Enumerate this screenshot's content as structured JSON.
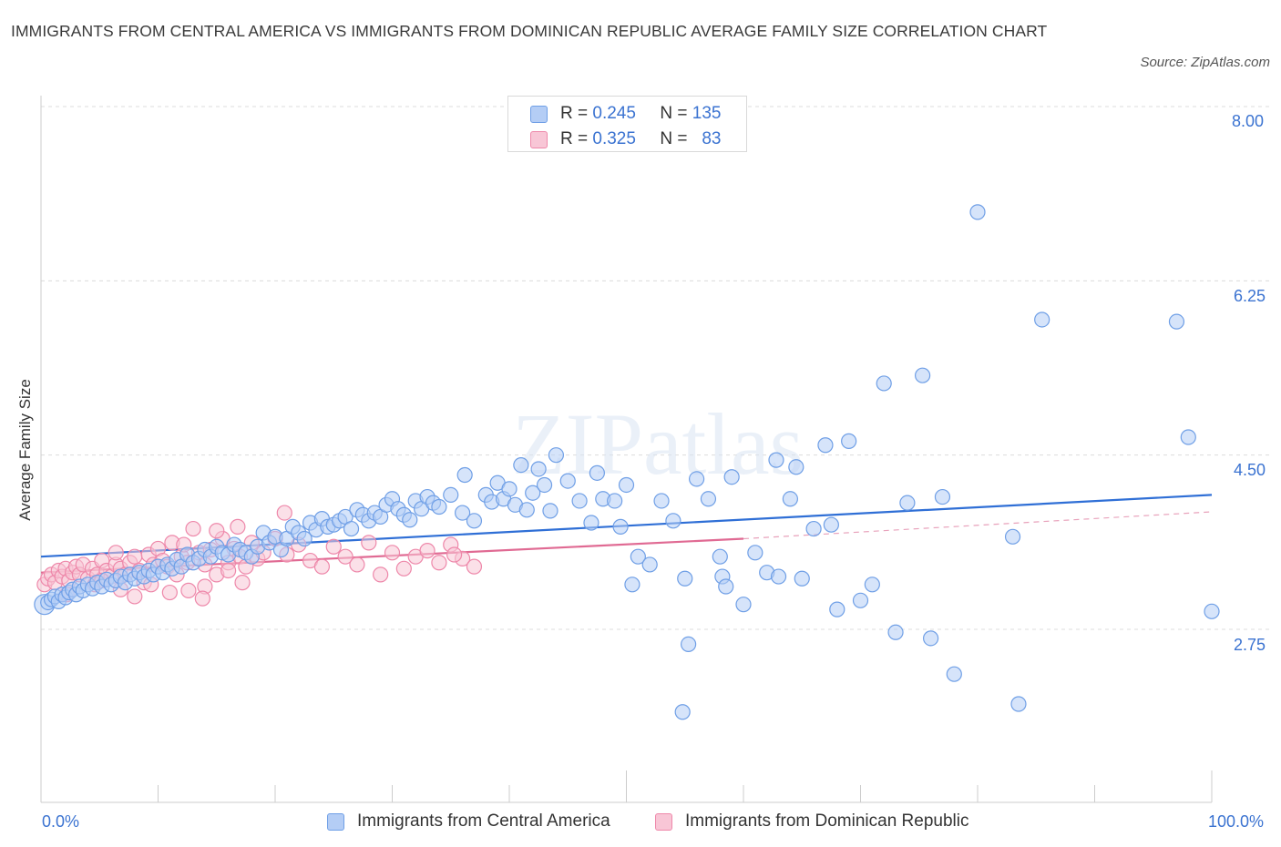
{
  "title": "IMMIGRANTS FROM CENTRAL AMERICA VS IMMIGRANTS FROM DOMINICAN REPUBLIC AVERAGE FAMILY SIZE CORRELATION CHART",
  "source": "Source: ZipAtlas.com",
  "watermark": "ZIPatlas",
  "legend_top": [
    {
      "r_label": "R =",
      "r": "0.245",
      "n_label": "N =",
      "n": "135"
    },
    {
      "r_label": "R =",
      "r": "0.325",
      "n_label": "N =",
      "n": "83"
    }
  ],
  "chart_data": {
    "type": "scatter",
    "title": "IMMIGRANTS FROM CENTRAL AMERICA VS IMMIGRANTS FROM DOMINICAN REPUBLIC AVERAGE FAMILY SIZE CORRELATION CHART",
    "xlabel": "",
    "ylabel": "Average Family Size",
    "xlim": [
      0,
      100
    ],
    "ylim": [
      1.35,
      8.4
    ],
    "x_tick_labels": [
      "0.0%",
      "100.0%"
    ],
    "y_ticks": [
      2.75,
      4.5,
      6.25,
      8.0
    ],
    "y_tick_labels": [
      "2.75",
      "4.50",
      "6.25",
      "8.00"
    ],
    "grid": "horizontal dashed",
    "legend_position": "top-center and bottom",
    "series": [
      {
        "name": "Immigrants from Central America",
        "color": "#6f9fe6",
        "fill": "#b4cdf5",
        "R": 0.245,
        "N": 135,
        "trendline": {
          "x": [
            0,
            100
          ],
          "y": [
            3.48,
            4.1
          ]
        },
        "points": [
          [
            0.3,
            3.0
          ],
          [
            0.6,
            3.02
          ],
          [
            0.9,
            3.05
          ],
          [
            1.2,
            3.08
          ],
          [
            1.5,
            3.03
          ],
          [
            1.8,
            3.1
          ],
          [
            2.1,
            3.07
          ],
          [
            2.4,
            3.12
          ],
          [
            2.7,
            3.15
          ],
          [
            3.0,
            3.1
          ],
          [
            3.3,
            3.18
          ],
          [
            3.6,
            3.14
          ],
          [
            4.0,
            3.2
          ],
          [
            4.4,
            3.16
          ],
          [
            4.8,
            3.22
          ],
          [
            5.2,
            3.18
          ],
          [
            5.6,
            3.25
          ],
          [
            6.0,
            3.2
          ],
          [
            6.4,
            3.24
          ],
          [
            6.8,
            3.28
          ],
          [
            7.2,
            3.22
          ],
          [
            7.6,
            3.3
          ],
          [
            8.0,
            3.26
          ],
          [
            8.4,
            3.32
          ],
          [
            8.8,
            3.28
          ],
          [
            9.2,
            3.34
          ],
          [
            9.6,
            3.3
          ],
          [
            10,
            3.38
          ],
          [
            10.4,
            3.32
          ],
          [
            10.8,
            3.4
          ],
          [
            11.2,
            3.36
          ],
          [
            11.6,
            3.45
          ],
          [
            12,
            3.38
          ],
          [
            12.5,
            3.5
          ],
          [
            13,
            3.42
          ],
          [
            13.5,
            3.46
          ],
          [
            14,
            3.55
          ],
          [
            14.5,
            3.48
          ],
          [
            15,
            3.58
          ],
          [
            15.5,
            3.52
          ],
          [
            16,
            3.5
          ],
          [
            16.5,
            3.6
          ],
          [
            17,
            3.55
          ],
          [
            17.5,
            3.52
          ],
          [
            18,
            3.48
          ],
          [
            18.5,
            3.58
          ],
          [
            19,
            3.72
          ],
          [
            19.5,
            3.62
          ],
          [
            20,
            3.68
          ],
          [
            20.5,
            3.55
          ],
          [
            21,
            3.66
          ],
          [
            21.5,
            3.78
          ],
          [
            22,
            3.72
          ],
          [
            22.5,
            3.66
          ],
          [
            23,
            3.82
          ],
          [
            23.5,
            3.75
          ],
          [
            24,
            3.86
          ],
          [
            24.5,
            3.78
          ],
          [
            25,
            3.8
          ],
          [
            25.5,
            3.84
          ],
          [
            26,
            3.88
          ],
          [
            26.5,
            3.76
          ],
          [
            27,
            3.95
          ],
          [
            27.5,
            3.9
          ],
          [
            28,
            3.84
          ],
          [
            28.5,
            3.92
          ],
          [
            29,
            3.88
          ],
          [
            29.5,
            4.0
          ],
          [
            30,
            4.06
          ],
          [
            30.5,
            3.96
          ],
          [
            31,
            3.9
          ],
          [
            31.5,
            3.85
          ],
          [
            32,
            4.04
          ],
          [
            32.5,
            3.96
          ],
          [
            33,
            4.08
          ],
          [
            33.5,
            4.02
          ],
          [
            34,
            3.98
          ],
          [
            35,
            4.1
          ],
          [
            36,
            3.92
          ],
          [
            36.2,
            4.3
          ],
          [
            37,
            3.84
          ],
          [
            38,
            4.1
          ],
          [
            38.5,
            4.03
          ],
          [
            39,
            4.22
          ],
          [
            39.5,
            4.06
          ],
          [
            40,
            4.16
          ],
          [
            40.5,
            4.0
          ],
          [
            41,
            4.4
          ],
          [
            41.5,
            3.95
          ],
          [
            42,
            4.12
          ],
          [
            42.5,
            4.36
          ],
          [
            43,
            4.2
          ],
          [
            43.5,
            3.94
          ],
          [
            44,
            4.5
          ],
          [
            45,
            4.24
          ],
          [
            46,
            4.04
          ],
          [
            47,
            3.82
          ],
          [
            47.5,
            4.32
          ],
          [
            48,
            4.06
          ],
          [
            49,
            4.04
          ],
          [
            49.5,
            3.78
          ],
          [
            50,
            4.2
          ],
          [
            50.5,
            3.2
          ],
          [
            51,
            3.48
          ],
          [
            52,
            3.4
          ],
          [
            53,
            4.04
          ],
          [
            54,
            3.84
          ],
          [
            55,
            3.26
          ],
          [
            56,
            4.26
          ],
          [
            57,
            4.06
          ],
          [
            58,
            3.48
          ],
          [
            58.2,
            3.28
          ],
          [
            58.5,
            3.18
          ],
          [
            59,
            4.28
          ],
          [
            60,
            3.0
          ],
          [
            61,
            3.52
          ],
          [
            62,
            3.32
          ],
          [
            63,
            3.28
          ],
          [
            64,
            4.06
          ],
          [
            64.5,
            4.38
          ],
          [
            65,
            3.26
          ],
          [
            66,
            3.76
          ],
          [
            67,
            4.6
          ],
          [
            67.5,
            3.8
          ],
          [
            68,
            2.95
          ],
          [
            69,
            4.64
          ],
          [
            70,
            3.04
          ],
          [
            71,
            3.2
          ],
          [
            72,
            5.22
          ],
          [
            73,
            2.72
          ],
          [
            74,
            4.02
          ],
          [
            76,
            2.66
          ],
          [
            77,
            4.08
          ],
          [
            78,
            2.3
          ],
          [
            80,
            6.94
          ],
          [
            83,
            3.68
          ],
          [
            85.5,
            5.86
          ],
          [
            97,
            5.84
          ],
          [
            98,
            4.68
          ],
          [
            100,
            2.93
          ],
          [
            54.8,
            1.92
          ],
          [
            55.3,
            2.6
          ],
          [
            75.3,
            5.3
          ],
          [
            83.5,
            2.0
          ],
          [
            62.8,
            4.45
          ]
        ]
      },
      {
        "name": "Immigrants from Dominican Republic",
        "color": "#ee88aa",
        "fill": "#f8c6d6",
        "R": 0.325,
        "N": 83,
        "trendline": {
          "x": [
            0,
            60
          ],
          "y": [
            3.32,
            3.66
          ]
        },
        "trendline_dashed": {
          "x": [
            60,
            100
          ],
          "y": [
            3.66,
            3.93
          ]
        },
        "points": [
          [
            0.3,
            3.2
          ],
          [
            0.6,
            3.26
          ],
          [
            0.9,
            3.3
          ],
          [
            1.2,
            3.22
          ],
          [
            1.5,
            3.34
          ],
          [
            1.8,
            3.28
          ],
          [
            2.1,
            3.36
          ],
          [
            2.4,
            3.24
          ],
          [
            2.7,
            3.32
          ],
          [
            3.0,
            3.38
          ],
          [
            3.3,
            3.3
          ],
          [
            3.6,
            3.4
          ],
          [
            4.0,
            3.26
          ],
          [
            4.4,
            3.36
          ],
          [
            4.8,
            3.3
          ],
          [
            5.2,
            3.44
          ],
          [
            5.6,
            3.34
          ],
          [
            6.0,
            3.28
          ],
          [
            6.4,
            3.4
          ],
          [
            6.8,
            3.36
          ],
          [
            7.2,
            3.3
          ],
          [
            7.6,
            3.42
          ],
          [
            8.0,
            3.48
          ],
          [
            8.4,
            3.34
          ],
          [
            8.8,
            3.22
          ],
          [
            9.2,
            3.5
          ],
          [
            9.6,
            3.4
          ],
          [
            10,
            3.56
          ],
          [
            10.4,
            3.44
          ],
          [
            10.8,
            3.38
          ],
          [
            11.2,
            3.62
          ],
          [
            11.6,
            3.3
          ],
          [
            12,
            3.48
          ],
          [
            12.5,
            3.42
          ],
          [
            13,
            3.76
          ],
          [
            13.5,
            3.52
          ],
          [
            14,
            3.4
          ],
          [
            14.5,
            3.55
          ],
          [
            15,
            3.3
          ],
          [
            15.5,
            3.66
          ],
          [
            16,
            3.42
          ],
          [
            16.5,
            3.56
          ],
          [
            17,
            3.48
          ],
          [
            17.5,
            3.38
          ],
          [
            18,
            3.62
          ],
          [
            18.5,
            3.46
          ],
          [
            19,
            3.52
          ],
          [
            20,
            3.66
          ],
          [
            21,
            3.5
          ],
          [
            22,
            3.6
          ],
          [
            23,
            3.44
          ],
          [
            24,
            3.38
          ],
          [
            25,
            3.58
          ],
          [
            26,
            3.48
          ],
          [
            27,
            3.4
          ],
          [
            28,
            3.62
          ],
          [
            29,
            3.3
          ],
          [
            30,
            3.52
          ],
          [
            31,
            3.36
          ],
          [
            32,
            3.48
          ],
          [
            33,
            3.54
          ],
          [
            34,
            3.42
          ],
          [
            35,
            3.6
          ],
          [
            36,
            3.46
          ],
          [
            37,
            3.38
          ],
          [
            2.2,
            3.1
          ],
          [
            4.6,
            3.2
          ],
          [
            6.8,
            3.15
          ],
          [
            8.0,
            3.08
          ],
          [
            9.4,
            3.2
          ],
          [
            11.0,
            3.12
          ],
          [
            12.6,
            3.14
          ],
          [
            14.0,
            3.18
          ],
          [
            13.8,
            3.06
          ],
          [
            16.0,
            3.34
          ],
          [
            17.2,
            3.22
          ],
          [
            5.2,
            3.24
          ],
          [
            6.4,
            3.52
          ],
          [
            12.2,
            3.6
          ],
          [
            15.0,
            3.74
          ],
          [
            16.8,
            3.78
          ],
          [
            20.8,
            3.92
          ],
          [
            35.3,
            3.5
          ]
        ]
      }
    ]
  }
}
